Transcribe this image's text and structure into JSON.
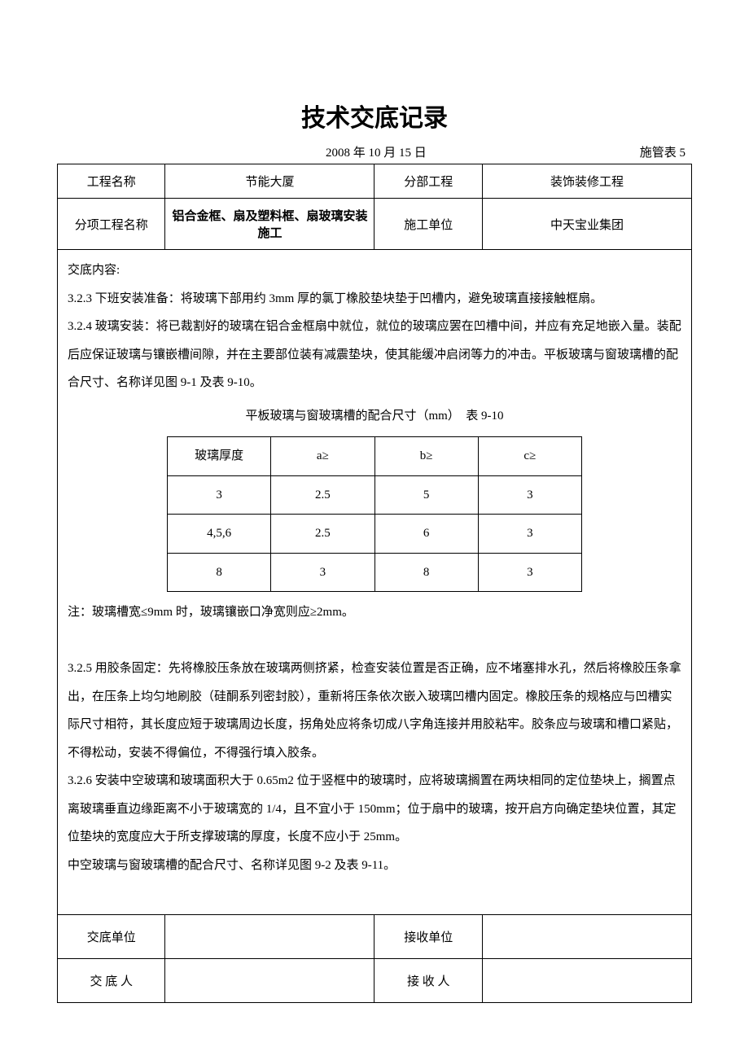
{
  "title": "技术交底记录",
  "date": "2008 年 10 月 15 日",
  "formNumber": "施管表 5",
  "header": {
    "projectNameLabel": "工程名称",
    "projectName": "节能大厦",
    "sectionLabel": "分部工程",
    "sectionName": "装饰装修工程",
    "subProjectLabel": "分项工程名称",
    "subProjectName": "铝合金框、扇及塑料框、扇玻璃安装施工",
    "unitLabel": "施工单位",
    "unitName": "中天宝业集团"
  },
  "content": {
    "label": "交底内容:",
    "p1": "3.2.3 下班安装准备：将玻璃下部用约 3mm 厚的氯丁橡胶垫块垫于凹槽内，避免玻璃直接接触框扇。",
    "p2": "3.2.4 玻璃安装：将已裁割好的玻璃在铝合金框扇中就位，就位的玻璃应罢在凹槽中间，并应有充足地嵌入量。装配后应保证玻璃与镶嵌槽间隙，并在主要部位装有减震垫块，使其能缓冲启闭等力的冲击。平板玻璃与窗玻璃槽的配合尺寸、名称详见图 9-1 及表 9-10。",
    "innerCaption": "平板玻璃与窗玻璃槽的配合尺寸（mm）　表 9-10",
    "innerTable": {
      "headers": [
        "玻璃厚度",
        "a≥",
        "b≥",
        "c≥"
      ],
      "rows": [
        [
          "3",
          "2.5",
          "5",
          "3"
        ],
        [
          "4,5,6",
          "2.5",
          "6",
          "3"
        ],
        [
          "8",
          "3",
          "8",
          "3"
        ]
      ]
    },
    "note": "注：玻璃槽宽≤9mm 时，玻璃镶嵌口净宽则应≥2mm。",
    "p3": "3.2.5 用胶条固定：先将橡胶压条放在玻璃两侧挤紧，检查安装位置是否正确，应不堵塞排水孔，然后将橡胶压条拿出，在压条上均匀地刷胶（硅酮系列密封胶），重新将压条依次嵌入玻璃凹槽内固定。橡胶压条的规格应与凹槽实际尺寸相符，其长度应短于玻璃周边长度，拐角处应将条切成八字角连接并用胶粘牢。胶条应与玻璃和槽口紧贴，不得松动，安装不得偏位，不得强行填入胶条。",
    "p4": "3.2.6 安装中空玻璃和玻璃面积大于 0.65m2 位于竖框中的玻璃时，应将玻璃搁置在两块相同的定位垫块上，搁置点离玻璃垂直边缘距离不小于玻璃宽的 1/4，且不宜小于 150mm；位于扇中的玻璃，按开启方向确定垫块位置，其定位垫块的宽度应大于所支撑玻璃的厚度，长度不应小于 25mm。",
    "p5": "中空玻璃与窗玻璃槽的配合尺寸、名称详见图 9-2 及表 9-11。"
  },
  "footer": {
    "issueUnitLabel": "交底单位",
    "receiveUnitLabel": "接收单位",
    "issuerLabel": "交 底 人",
    "receiverLabel": "接 收 人"
  }
}
